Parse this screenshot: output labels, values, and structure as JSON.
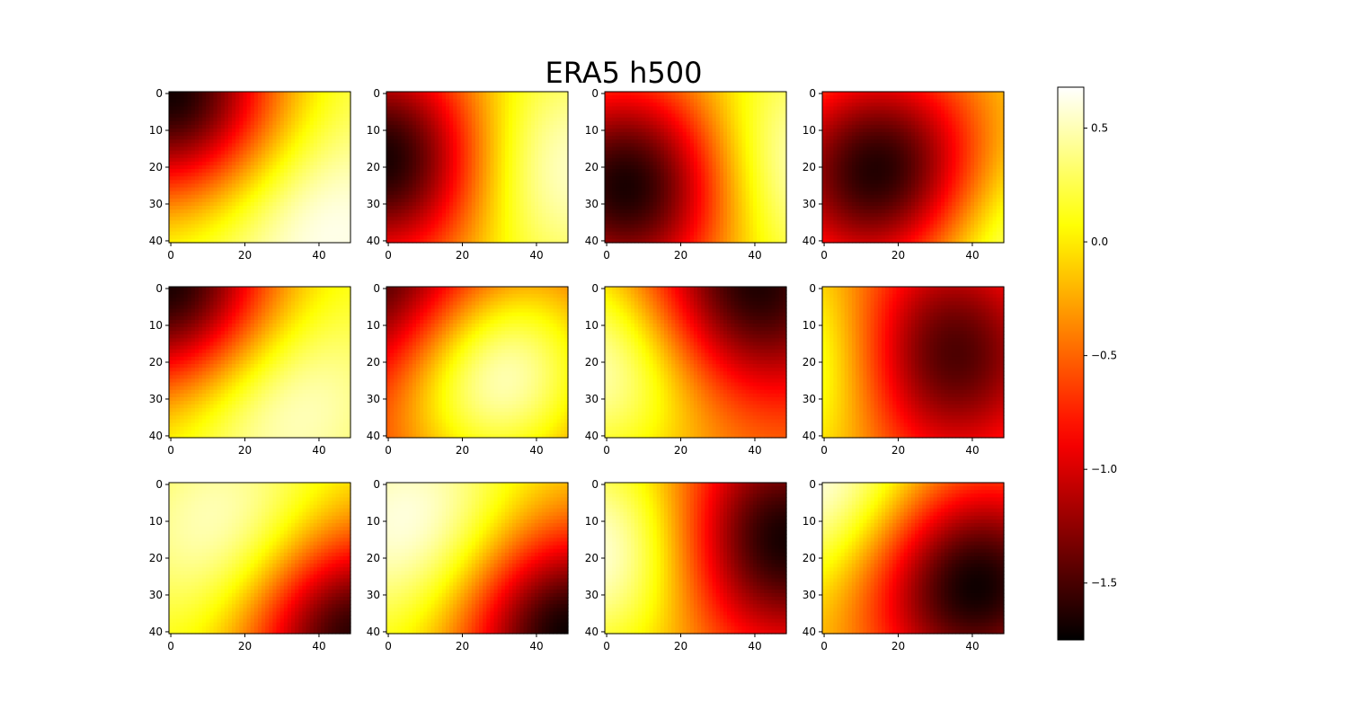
{
  "chart_data": {
    "type": "heatmap",
    "title": "ERA5 h500",
    "colormap": "hot",
    "grid": false,
    "layout": {
      "rows": 3,
      "cols": 4
    },
    "image_shape": {
      "rows": 41,
      "cols": 49
    },
    "x_ticks": [
      "0",
      "20",
      "40"
    ],
    "y_ticks": [
      "0",
      "10",
      "20",
      "30",
      "40"
    ],
    "colorbar": {
      "vmin": -1.75,
      "vmax": 0.68,
      "ticks": [
        {
          "value": 0.5,
          "label": "0.5"
        },
        {
          "value": 0.0,
          "label": "0.0"
        },
        {
          "value": -0.5,
          "label": "−0.5"
        },
        {
          "value": -1.0,
          "label": "−1.0"
        },
        {
          "value": -1.5,
          "label": "−1.5"
        }
      ],
      "placement": "right"
    },
    "panels": [
      {
        "row": 0,
        "col": 0,
        "base": 0.25,
        "min_at": [
          0,
          0
        ],
        "min_value": -1.7,
        "max_at": [
          35,
          40
        ],
        "max_value": 0.68
      },
      {
        "row": 0,
        "col": 1,
        "base": 0.0,
        "min_at": [
          18,
          0
        ],
        "min_value": -1.75,
        "max_at": [
          20,
          42
        ],
        "max_value": 0.68
      },
      {
        "row": 0,
        "col": 2,
        "base": 0.0,
        "min_at": [
          25,
          7
        ],
        "min_value": -1.75,
        "max_at": [
          20,
          48
        ],
        "max_value": 0.68
      },
      {
        "row": 0,
        "col": 3,
        "base": 0.0,
        "min_at": [
          22,
          16
        ],
        "min_value": -1.75,
        "max_at": [
          40,
          48
        ],
        "max_value": 0.6
      },
      {
        "row": 1,
        "col": 0,
        "base": 0.1,
        "min_at": [
          0,
          0
        ],
        "min_value": -1.75,
        "max_at": [
          28,
          28
        ],
        "max_value": 0.68
      },
      {
        "row": 1,
        "col": 1,
        "base": -0.75,
        "min_at": [
          0,
          0
        ],
        "min_value": -1.75,
        "max_at": [
          22,
          28
        ],
        "max_value": 0.68
      },
      {
        "row": 1,
        "col": 2,
        "base": -0.4,
        "min_at": [
          0,
          38
        ],
        "min_value": -1.75,
        "max_at": [
          20,
          0
        ],
        "max_value": 0.6
      },
      {
        "row": 1,
        "col": 3,
        "base": -0.3,
        "min_at": [
          18,
          30
        ],
        "min_value": -1.75,
        "max_at": [
          20,
          0
        ],
        "max_value": 0.6
      },
      {
        "row": 2,
        "col": 0,
        "base": 0.05,
        "min_at": [
          40,
          48
        ],
        "min_value": -1.7,
        "max_at": [
          15,
          18
        ],
        "max_value": 0.68
      },
      {
        "row": 2,
        "col": 1,
        "base": 0.0,
        "min_at": [
          40,
          48
        ],
        "min_value": -1.75,
        "max_at": [
          12,
          8
        ],
        "max_value": 0.68
      },
      {
        "row": 2,
        "col": 2,
        "base": -0.3,
        "min_at": [
          15,
          46
        ],
        "min_value": -1.75,
        "max_at": [
          18,
          0
        ],
        "max_value": 0.68
      },
      {
        "row": 2,
        "col": 3,
        "base": -0.1,
        "min_at": [
          27,
          40
        ],
        "min_value": -1.75,
        "max_at": [
          0,
          0
        ],
        "max_value": 0.68
      }
    ]
  }
}
